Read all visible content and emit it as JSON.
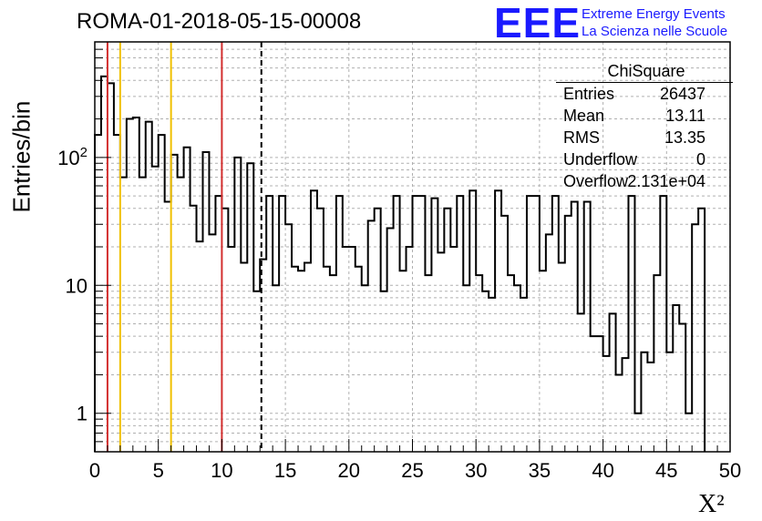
{
  "header": {
    "title": "ROMA-01-2018-05-15-00008",
    "logo_text": "EEE",
    "logo_line1": "Extreme Energy Events",
    "logo_line2": "La Scienza nelle Scuole"
  },
  "stats_box": {
    "title": "ChiSquare",
    "rows": [
      {
        "key": "Entries",
        "value": "26437"
      },
      {
        "key": "Mean",
        "value": "13.11"
      },
      {
        "key": "RMS",
        "value": "13.35"
      },
      {
        "key": "Underflow",
        "value": "0"
      },
      {
        "key": "Overflow",
        "value": "2.131e+04"
      }
    ]
  },
  "chart_data": {
    "type": "histogram",
    "title": "ROMA-01-2018-05-15-00008",
    "xlabel": "X²",
    "ylabel": "Entries/bin",
    "xlim": [
      0,
      50
    ],
    "ylim": [
      0.5,
      800
    ],
    "yscale": "log",
    "grid": true,
    "bin_width": 0.5,
    "x_ticks": [
      "0",
      "5",
      "10",
      "15",
      "20",
      "25",
      "30",
      "35",
      "40",
      "45",
      "50"
    ],
    "y_ticks": [
      {
        "value": 1,
        "label": "1"
      },
      {
        "value": 10,
        "label": "10"
      },
      {
        "value": 100,
        "label": "10^2"
      }
    ],
    "counts": [
      150,
      430,
      380,
      150,
      70,
      200,
      205,
      70,
      190,
      85,
      150,
      45,
      105,
      70,
      120,
      42,
      22,
      110,
      25,
      50,
      40,
      20,
      100,
      15,
      90,
      9,
      16,
      50,
      10,
      50,
      30,
      14,
      13,
      15,
      55,
      40,
      14,
      12,
      50,
      20,
      20,
      14,
      10,
      32,
      40,
      9,
      28,
      50,
      13,
      20,
      50,
      50,
      12,
      48,
      18,
      40,
      20,
      50,
      10,
      55,
      12,
      9,
      8,
      55,
      35,
      12,
      10,
      8,
      50,
      50,
      13,
      25,
      50,
      15,
      35,
      45,
      6,
      45,
      4,
      4,
      2.8,
      6,
      2,
      2.7,
      50,
      1,
      3,
      2.5,
      12,
      50,
      3,
      7,
      5,
      1,
      30,
      40
    ],
    "vertical_lines": [
      {
        "x": 1,
        "color": "#d32f2f",
        "style": "solid"
      },
      {
        "x": 2,
        "color": "#f0c000",
        "style": "solid"
      },
      {
        "x": 6,
        "color": "#f0c000",
        "style": "solid"
      },
      {
        "x": 10,
        "color": "#d32f2f",
        "style": "solid"
      },
      {
        "x": 13.11,
        "color": "#000000",
        "style": "dashed"
      }
    ]
  }
}
